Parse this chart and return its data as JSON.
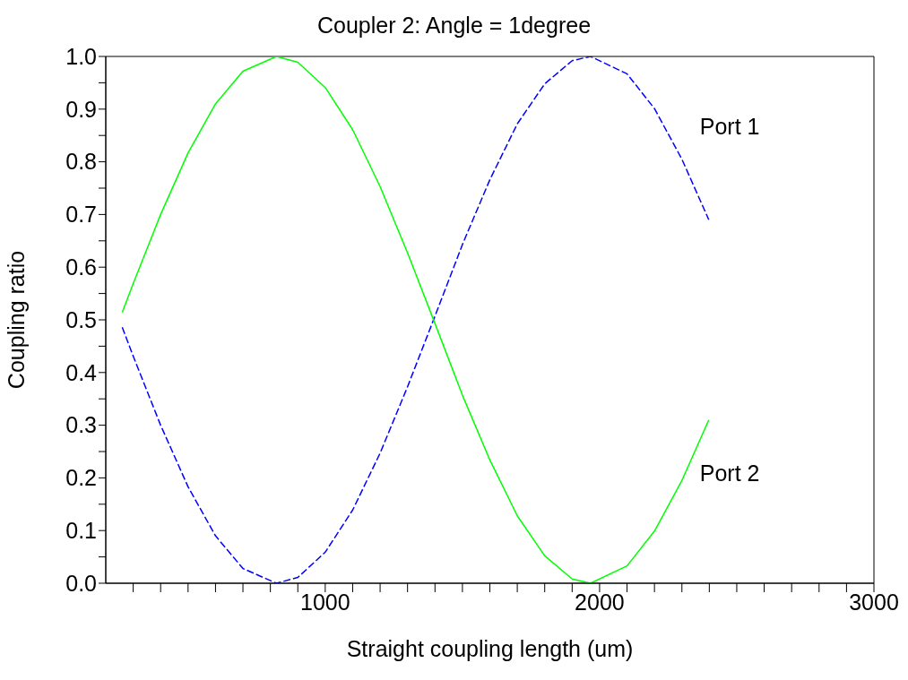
{
  "chart_data": {
    "type": "line",
    "title": "Coupler 2: Angle = 1degree",
    "xlabel": "Straight coupling length (um)",
    "ylabel": "Coupling ratio",
    "xlim": [
      200,
      3000
    ],
    "xticks": [
      {
        "value": 300,
        "label": null
      },
      {
        "value": 400,
        "label": null
      },
      {
        "value": 500,
        "label": null
      },
      {
        "value": 600,
        "label": null
      },
      {
        "value": 700,
        "label": null
      },
      {
        "value": 800,
        "label": null
      },
      {
        "value": 900,
        "label": null
      },
      1000,
      {
        "value": 1100,
        "label": null
      },
      {
        "value": 1200,
        "label": null
      },
      {
        "value": 1300,
        "label": null
      },
      {
        "value": 1400,
        "label": null
      },
      {
        "value": 1500,
        "label": null
      },
      {
        "value": 1600,
        "label": null
      },
      {
        "value": 1700,
        "label": null
      },
      {
        "value": 1800,
        "label": null
      },
      {
        "value": 1900,
        "label": null
      },
      2000,
      {
        "value": 2100,
        "label": null
      },
      {
        "value": 2200,
        "label": null
      },
      {
        "value": 2300,
        "label": null
      },
      {
        "value": 2400,
        "label": null
      },
      {
        "value": 2500,
        "label": null
      },
      {
        "value": 2600,
        "label": null
      },
      {
        "value": 2700,
        "label": null
      },
      {
        "value": 2800,
        "label": null
      },
      {
        "value": 2900,
        "label": null
      },
      3000
    ],
    "ylim": [
      0,
      1
    ],
    "yticks": [
      {
        "value": 0,
        "label": "0.0"
      },
      {
        "value": 0.05,
        "label": null
      },
      {
        "value": 0.1,
        "label": "0.1"
      },
      {
        "value": 0.15,
        "label": null
      },
      {
        "value": 0.2,
        "label": "0.2"
      },
      {
        "value": 0.25,
        "label": null
      },
      {
        "value": 0.3,
        "label": "0.3"
      },
      {
        "value": 0.35,
        "label": null
      },
      {
        "value": 0.4,
        "label": "0.4"
      },
      {
        "value": 0.45,
        "label": null
      },
      {
        "value": 0.5,
        "label": "0.5"
      },
      {
        "value": 0.55,
        "label": null
      },
      {
        "value": 0.6,
        "label": "0.6"
      },
      {
        "value": 0.65,
        "label": null
      },
      {
        "value": 0.7,
        "label": "0.7"
      },
      {
        "value": 0.75,
        "label": null
      },
      {
        "value": 0.8,
        "label": "0.8"
      },
      {
        "value": 0.85,
        "label": null
      },
      {
        "value": 0.9,
        "label": "0.9"
      },
      {
        "value": 0.95,
        "label": null
      },
      {
        "value": 1,
        "label": "1.0"
      }
    ],
    "x": [
      260,
      300,
      400,
      500,
      600,
      700,
      822,
      900,
      1000,
      1100,
      1200,
      1300,
      1400,
      1500,
      1600,
      1700,
      1800,
      1900,
      1967,
      2100,
      2200,
      2300,
      2398
    ],
    "series": [
      {
        "name": "Port 1",
        "color": "#0000ff",
        "line_style": "dashed",
        "values": [
          0.486,
          0.431,
          0.3,
          0.183,
          0.09,
          0.028,
          0,
          0.011,
          0.059,
          0.139,
          0.247,
          0.373,
          0.507,
          0.643,
          0.766,
          0.872,
          0.948,
          0.992,
          1,
          0.967,
          0.901,
          0.805,
          0.69
        ]
      },
      {
        "name": "Port 2",
        "color": "#00ff00",
        "line_style": "solid",
        "values": [
          0.514,
          0.569,
          0.7,
          0.817,
          0.91,
          0.972,
          1,
          0.989,
          0.941,
          0.861,
          0.753,
          0.627,
          0.493,
          0.357,
          0.234,
          0.128,
          0.052,
          0.008,
          0,
          0.033,
          0.099,
          0.195,
          0.31
        ]
      }
    ],
    "grid": false,
    "legend": false,
    "marker": "none"
  }
}
